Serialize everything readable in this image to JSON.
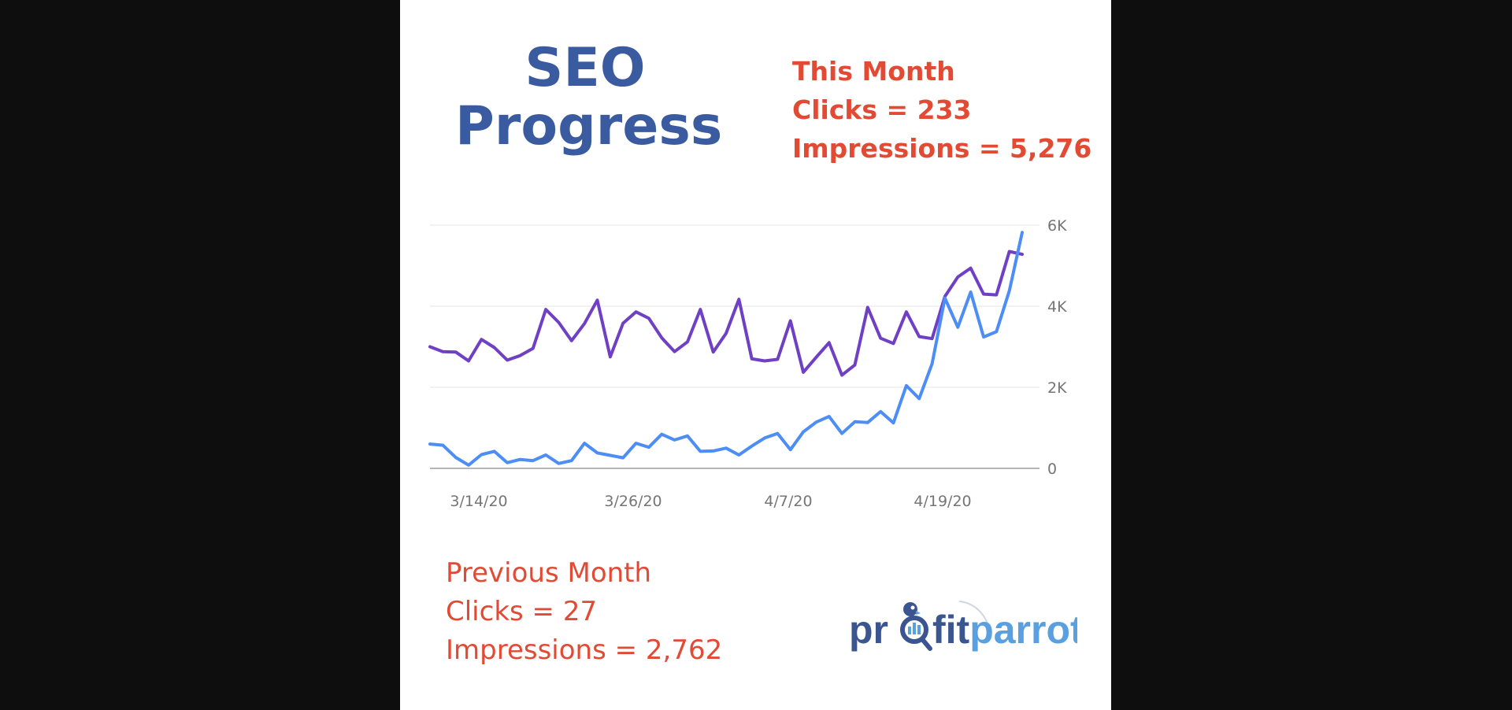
{
  "title": {
    "line1": "SEO",
    "line2": "Progress"
  },
  "current_month": {
    "heading": "This Month",
    "clicks": "Clicks = 233",
    "impressions": "Impressions = 5,276"
  },
  "previous_month": {
    "heading": "Previous Month",
    "clicks": "Clicks = 27",
    "impressions": "Impressions = 2,762"
  },
  "logo": {
    "text_part1": "pr",
    "text_part2": "fitparrot"
  },
  "colors": {
    "title": "#3a5ba0",
    "stats": "#e24a33",
    "impressions_line": "#6f3fc4",
    "clicks_line": "#4c8df6",
    "logo_dark": "#3a5590",
    "logo_light": "#5aa0e0"
  },
  "chart_data": {
    "type": "line",
    "x_ticks": [
      "3/14/20",
      "3/26/20",
      "4/7/20",
      "4/19/20"
    ],
    "y_ticks": [
      "0",
      "2K",
      "4K",
      "6K"
    ],
    "ylim": [
      0,
      6000
    ],
    "grid": true,
    "series": [
      {
        "color": "#6f3fc4",
        "values": [
          3000,
          2880,
          2870,
          2650,
          3180,
          2980,
          2670,
          2780,
          2960,
          3920,
          3600,
          3150,
          3570,
          4150,
          2750,
          3580,
          3860,
          3700,
          3220,
          2880,
          3120,
          3920,
          2870,
          3330,
          4170,
          2700,
          2650,
          2690,
          3640,
          2370,
          2740,
          3100,
          2300,
          2550,
          3970,
          3210,
          3080,
          3860,
          3250,
          3200,
          4240,
          4720,
          4940,
          4300,
          4280,
          5350,
          5280
        ]
      },
      {
        "color": "#4c8df6",
        "values": [
          600,
          570,
          270,
          80,
          340,
          420,
          140,
          220,
          190,
          330,
          120,
          190,
          620,
          380,
          320,
          260,
          620,
          520,
          840,
          700,
          800,
          420,
          430,
          500,
          330,
          550,
          750,
          860,
          460,
          900,
          1140,
          1280,
          860,
          1150,
          1130,
          1400,
          1120,
          2040,
          1720,
          2580,
          4200,
          3480,
          4350,
          3240,
          3370,
          4380,
          5820
        ]
      }
    ]
  }
}
